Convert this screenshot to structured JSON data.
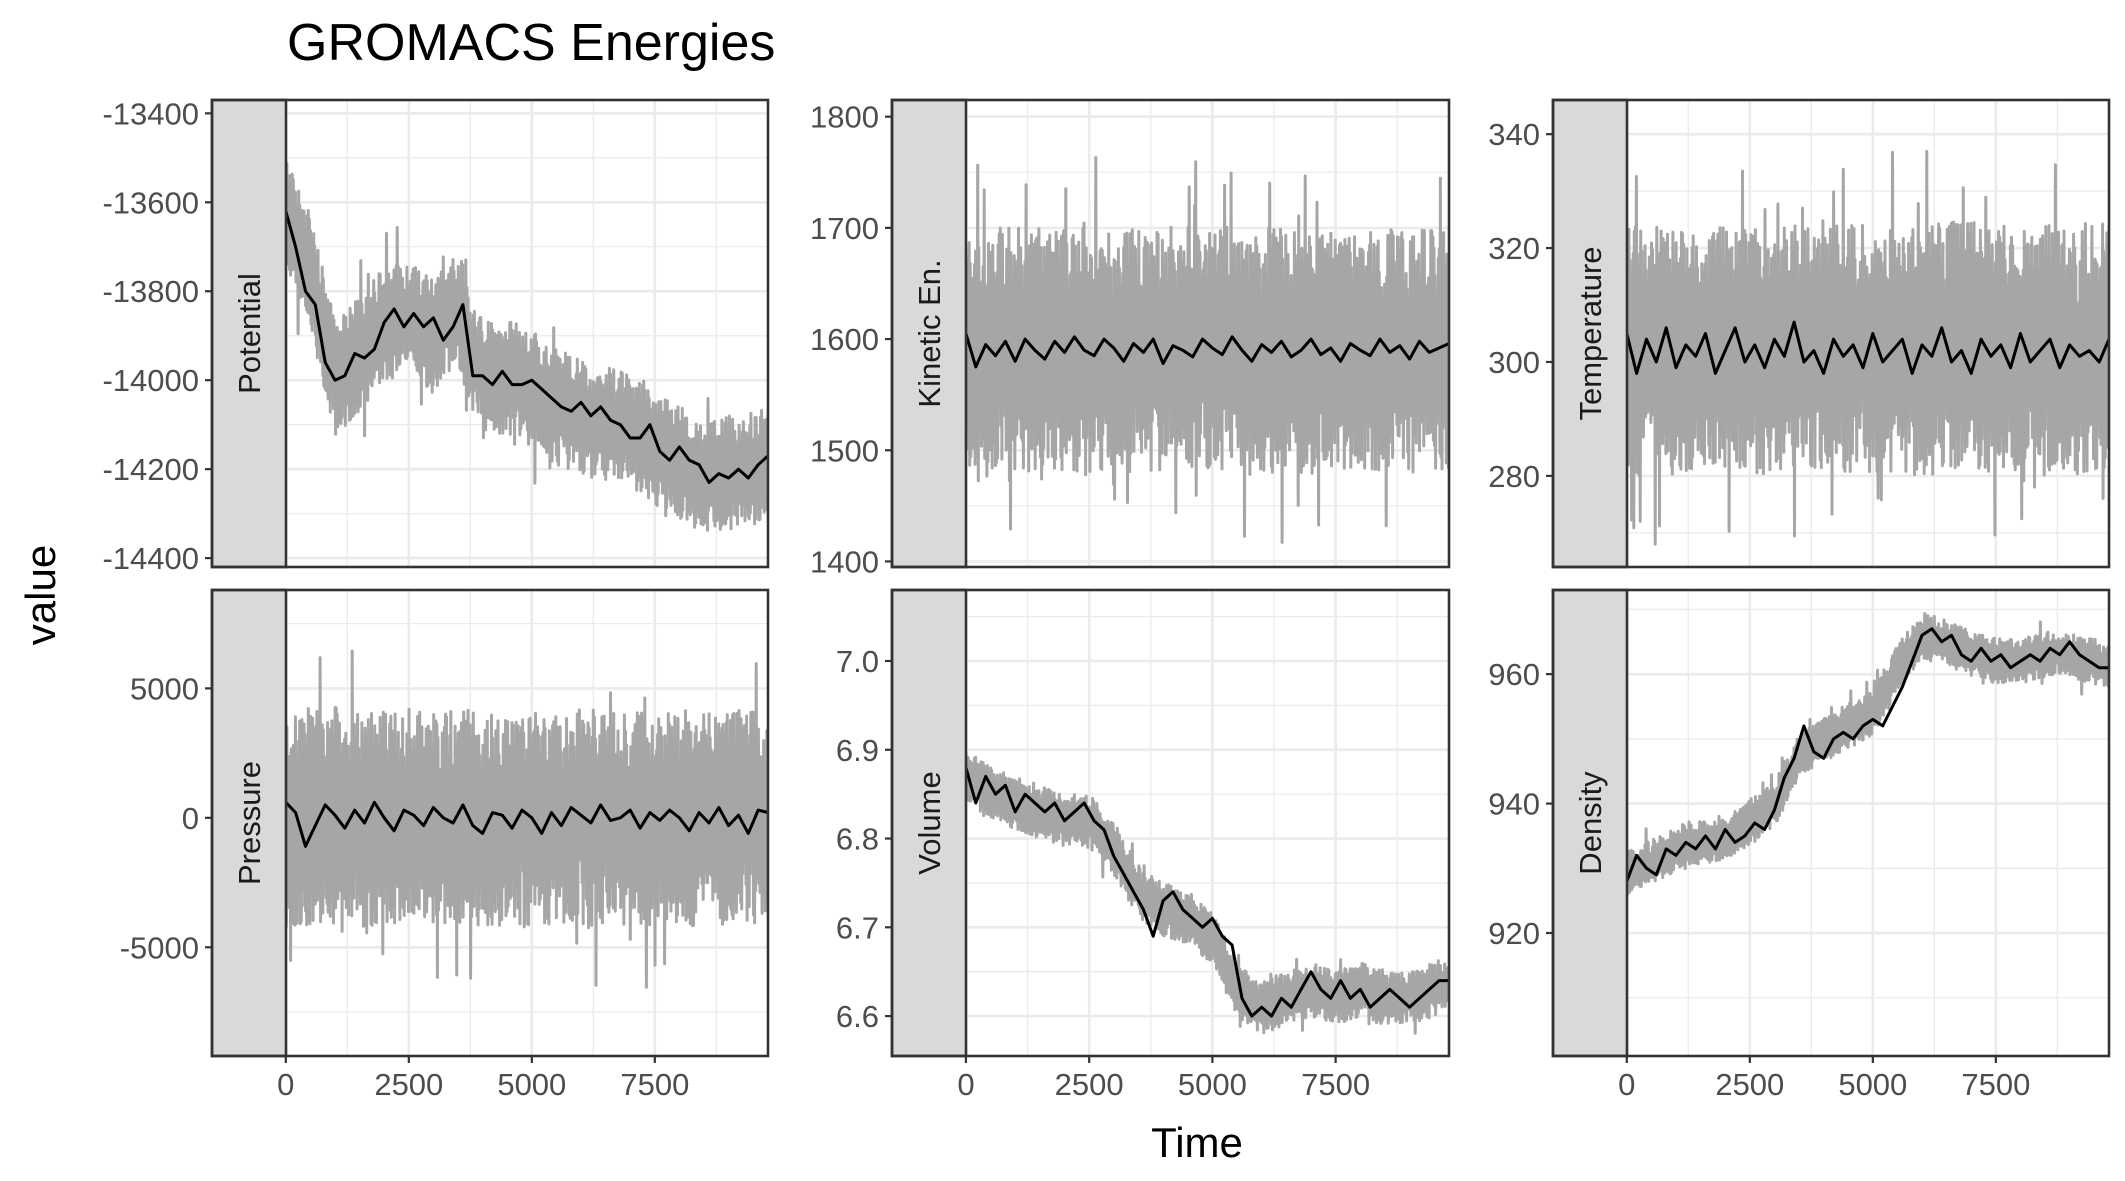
{
  "chart_data": {
    "type": "line",
    "title": "GROMACS Energies",
    "xlabel": "Time",
    "ylabel": "value",
    "layout": "facet-grid 2x3, free y scales",
    "colors": {
      "raw": "#a6a6a6",
      "smooth": "#000000",
      "strip": "#d9d9d9"
    },
    "xlim": [
      -1500,
      9800
    ],
    "x_ticks": [
      0,
      2500,
      5000,
      7500
    ],
    "x_tick_labels": [
      "0",
      "2500",
      "5000",
      "7500"
    ],
    "panels": [
      {
        "label": "Potential",
        "ylim": [
          -14420,
          -13370
        ],
        "y_ticks": [
          -13400,
          -13600,
          -13800,
          -14000,
          -14200,
          -14400
        ],
        "y_tick_labels": [
          "-13400",
          "-13600",
          "-13800",
          "-14000",
          "-14200",
          "-14400"
        ],
        "raw_amplitude": 130,
        "series": [
          {
            "name": "raw",
            "x": [
              0,
              500,
              1000,
              1500,
              2000,
              2500,
              3000,
              3500,
              4000,
              4500,
              5000,
              5500,
              6000,
              6500,
              7000,
              7500,
              8000,
              8500,
              9000,
              9500,
              9800
            ],
            "y": [
              -13620,
              -13760,
              -14000,
              -13940,
              -13870,
              -13860,
              -13900,
              -13840,
              -14000,
              -13990,
              -14020,
              -14060,
              -14080,
              -14100,
              -14110,
              -14150,
              -14180,
              -14220,
              -14210,
              -14200,
              -14170
            ]
          },
          {
            "name": "smooth",
            "x": [
              0,
              200,
              400,
              600,
              800,
              1000,
              1200,
              1400,
              1600,
              1800,
              2000,
              2200,
              2400,
              2600,
              2800,
              3000,
              3200,
              3400,
              3600,
              3800,
              4000,
              4200,
              4400,
              4600,
              4800,
              5000,
              5200,
              5400,
              5600,
              5800,
              6000,
              6200,
              6400,
              6600,
              6800,
              7000,
              7200,
              7400,
              7600,
              7800,
              8000,
              8200,
              8400,
              8600,
              8800,
              9000,
              9200,
              9400,
              9600,
              9800
            ],
            "y": [
              -13620,
              -13700,
              -13800,
              -13830,
              -13960,
              -14000,
              -13990,
              -13940,
              -13950,
              -13930,
              -13870,
              -13840,
              -13880,
              -13850,
              -13880,
              -13860,
              -13910,
              -13880,
              -13830,
              -13990,
              -13990,
              -14010,
              -13980,
              -14010,
              -14010,
              -14000,
              -14020,
              -14040,
              -14060,
              -14070,
              -14050,
              -14080,
              -14060,
              -14090,
              -14100,
              -14130,
              -14130,
              -14100,
              -14160,
              -14180,
              -14150,
              -14180,
              -14190,
              -14230,
              -14210,
              -14220,
              -14200,
              -14220,
              -14190,
              -14170
            ]
          }
        ]
      },
      {
        "label": "Kinetic En.",
        "ylim": [
          1395,
          1815
        ],
        "y_ticks": [
          1400,
          1500,
          1600,
          1700,
          1800
        ],
        "y_tick_labels": [
          "1400",
          "1500",
          "1600",
          "1700",
          "1800"
        ],
        "raw_amplitude": 110,
        "series": [
          {
            "name": "raw",
            "x": [
              0,
              1000,
              2000,
              3000,
              4000,
              5000,
              6000,
              7000,
              8000,
              9000,
              9800
            ],
            "y": [
              1590,
              1590,
              1592,
              1588,
              1591,
              1593,
              1590,
              1589,
              1592,
              1590,
              1591
            ]
          },
          {
            "name": "smooth",
            "x": [
              0,
              200,
              400,
              600,
              800,
              1000,
              1200,
              1400,
              1600,
              1800,
              2000,
              2200,
              2400,
              2600,
              2800,
              3000,
              3200,
              3400,
              3600,
              3800,
              4000,
              4200,
              4400,
              4600,
              4800,
              5000,
              5200,
              5400,
              5600,
              5800,
              6000,
              6200,
              6400,
              6600,
              6800,
              7000,
              7200,
              7400,
              7600,
              7800,
              8000,
              8200,
              8400,
              8600,
              8800,
              9000,
              9200,
              9400,
              9600,
              9800
            ],
            "y": [
              1605,
              1575,
              1595,
              1585,
              1598,
              1580,
              1600,
              1590,
              1582,
              1598,
              1588,
              1602,
              1590,
              1585,
              1600,
              1592,
              1580,
              1596,
              1588,
              1600,
              1578,
              1594,
              1590,
              1584,
              1600,
              1592,
              1586,
              1602,
              1590,
              1580,
              1595,
              1588,
              1598,
              1584,
              1590,
              1600,
              1586,
              1592,
              1580,
              1596,
              1590,
              1585,
              1600,
              1588,
              1594,
              1582,
              1598,
              1588,
              1592,
              1596
            ]
          }
        ]
      },
      {
        "label": "Temperature",
        "ylim": [
          264,
          346
        ],
        "y_ticks": [
          280,
          300,
          320,
          340
        ],
        "y_tick_labels": [
          "280",
          "300",
          "320",
          "340"
        ],
        "raw_amplitude": 22,
        "series": [
          {
            "name": "raw",
            "x": [
              0,
              1000,
              2000,
              3000,
              4000,
              5000,
              6000,
              7000,
              8000,
              9000,
              9800
            ],
            "y": [
              302,
              302,
              303,
              302,
              303,
              302,
              302,
              303,
              302,
              302,
              303
            ]
          },
          {
            "name": "smooth",
            "x": [
              0,
              200,
              400,
              600,
              800,
              1000,
              1200,
              1400,
              1600,
              1800,
              2000,
              2200,
              2400,
              2600,
              2800,
              3000,
              3200,
              3400,
              3600,
              3800,
              4000,
              4200,
              4400,
              4600,
              4800,
              5000,
              5200,
              5400,
              5600,
              5800,
              6000,
              6200,
              6400,
              6600,
              6800,
              7000,
              7200,
              7400,
              7600,
              7800,
              8000,
              8200,
              8400,
              8600,
              8800,
              9000,
              9200,
              9400,
              9600,
              9800
            ],
            "y": [
              305,
              298,
              304,
              300,
              306,
              299,
              303,
              301,
              305,
              298,
              302,
              306,
              300,
              303,
              299,
              304,
              301,
              307,
              300,
              302,
              298,
              304,
              301,
              303,
              299,
              305,
              300,
              302,
              304,
              298,
              303,
              301,
              306,
              300,
              302,
              298,
              304,
              301,
              303,
              299,
              305,
              300,
              302,
              304,
              299,
              303,
              301,
              302,
              300,
              304
            ]
          }
        ]
      },
      {
        "label": "Pressure",
        "ylim": [
          -9200,
          8800
        ],
        "y_ticks": [
          5000,
          0,
          -5000
        ],
        "y_tick_labels": [
          "5000",
          "0",
          "-5000"
        ],
        "raw_amplitude": 4200,
        "series": [
          {
            "name": "raw",
            "x": [
              0,
              1000,
              2000,
              3000,
              4000,
              5000,
              6000,
              7000,
              8000,
              9000,
              9800
            ],
            "y": [
              0,
              100,
              -50,
              80,
              0,
              -100,
              50,
              0,
              -50,
              100,
              0
            ]
          },
          {
            "name": "smooth",
            "x": [
              0,
              200,
              400,
              600,
              800,
              1000,
              1200,
              1400,
              1600,
              1800,
              2000,
              2200,
              2400,
              2600,
              2800,
              3000,
              3200,
              3400,
              3600,
              3800,
              4000,
              4200,
              4400,
              4600,
              4800,
              5000,
              5200,
              5400,
              5600,
              5800,
              6000,
              6200,
              6400,
              6600,
              6800,
              7000,
              7200,
              7400,
              7600,
              7800,
              8000,
              8200,
              8400,
              8600,
              8800,
              9000,
              9200,
              9400,
              9600,
              9800
            ],
            "y": [
              600,
              200,
              -1100,
              -300,
              500,
              100,
              -400,
              300,
              -200,
              600,
              0,
              -500,
              300,
              100,
              -300,
              400,
              0,
              -200,
              500,
              -300,
              -600,
              200,
              100,
              -400,
              300,
              0,
              -600,
              200,
              -300,
              400,
              100,
              -200,
              500,
              -100,
              0,
              300,
              -400,
              200,
              -100,
              300,
              0,
              -500,
              200,
              -200,
              400,
              -300,
              100,
              -600,
              300,
              200
            ]
          }
        ]
      },
      {
        "label": "Volume",
        "ylim": [
          6.555,
          7.08
        ],
        "y_ticks": [
          6.6,
          6.7,
          6.8,
          6.9,
          7.0
        ],
        "y_tick_labels": [
          "6.6",
          "6.7",
          "6.8",
          "6.9",
          "7.0"
        ],
        "raw_amplitude": 0.03,
        "series": [
          {
            "name": "raw",
            "x": [
              0,
              500,
              1000,
              1500,
              2000,
              2500,
              3000,
              3500,
              4000,
              4500,
              5000,
              5500,
              6000,
              6500,
              7000,
              7500,
              8000,
              8500,
              9000,
              9500,
              9800
            ],
            "y": [
              6.87,
              6.85,
              6.84,
              6.83,
              6.82,
              6.82,
              6.79,
              6.74,
              6.72,
              6.71,
              6.69,
              6.63,
              6.61,
              6.62,
              6.63,
              6.62,
              6.63,
              6.62,
              6.62,
              6.63,
              6.64
            ]
          },
          {
            "name": "smooth",
            "x": [
              0,
              200,
              400,
              600,
              800,
              1000,
              1200,
              1400,
              1600,
              1800,
              2000,
              2200,
              2400,
              2600,
              2800,
              3000,
              3200,
              3400,
              3600,
              3800,
              4000,
              4200,
              4400,
              4600,
              4800,
              5000,
              5200,
              5400,
              5600,
              5800,
              6000,
              6200,
              6400,
              6600,
              6800,
              7000,
              7200,
              7400,
              7600,
              7800,
              8000,
              8200,
              8400,
              8600,
              8800,
              9000,
              9200,
              9400,
              9600,
              9800
            ],
            "y": [
              6.88,
              6.84,
              6.87,
              6.85,
              6.86,
              6.83,
              6.85,
              6.84,
              6.83,
              6.84,
              6.82,
              6.83,
              6.84,
              6.82,
              6.81,
              6.78,
              6.76,
              6.74,
              6.72,
              6.69,
              6.73,
              6.74,
              6.72,
              6.71,
              6.7,
              6.71,
              6.69,
              6.68,
              6.62,
              6.6,
              6.61,
              6.6,
              6.62,
              6.61,
              6.63,
              6.65,
              6.63,
              6.62,
              6.64,
              6.62,
              6.63,
              6.61,
              6.62,
              6.63,
              6.62,
              6.61,
              6.62,
              6.63,
              6.64,
              6.64
            ]
          }
        ]
      },
      {
        "label": "Density",
        "ylim": [
          901,
          973
        ],
        "y_ticks": [
          920,
          940,
          960
        ],
        "y_tick_labels": [
          "920",
          "940",
          "960"
        ],
        "raw_amplitude": 3.5,
        "series": [
          {
            "name": "raw",
            "x": [
              0,
              500,
              1000,
              1500,
              2000,
              2500,
              3000,
              3500,
              4000,
              4500,
              5000,
              5500,
              6000,
              6500,
              7000,
              7500,
              8000,
              8500,
              9000,
              9500,
              9800
            ],
            "y": [
              929,
              931,
              933,
              934,
              935,
              937,
              940,
              947,
              950,
              952,
              954,
              961,
              966,
              965,
              963,
              962,
              962,
              963,
              963,
              962,
              961
            ]
          },
          {
            "name": "smooth",
            "x": [
              0,
              200,
              400,
              600,
              800,
              1000,
              1200,
              1400,
              1600,
              1800,
              2000,
              2200,
              2400,
              2600,
              2800,
              3000,
              3200,
              3400,
              3600,
              3800,
              4000,
              4200,
              4400,
              4600,
              4800,
              5000,
              5200,
              5400,
              5600,
              5800,
              6000,
              6200,
              6400,
              6600,
              6800,
              7000,
              7200,
              7400,
              7600,
              7800,
              8000,
              8200,
              8400,
              8600,
              8800,
              9000,
              9200,
              9400,
              9600,
              9800
            ],
            "y": [
              928,
              932,
              930,
              929,
              933,
              932,
              934,
              933,
              935,
              933,
              936,
              934,
              935,
              937,
              936,
              939,
              944,
              947,
              952,
              948,
              947,
              950,
              951,
              950,
              952,
              953,
              952,
              955,
              958,
              962,
              966,
              967,
              965,
              966,
              963,
              962,
              964,
              962,
              963,
              961,
              962,
              963,
              962,
              964,
              963,
              965,
              963,
              962,
              961,
              961
            ]
          }
        ]
      }
    ]
  }
}
